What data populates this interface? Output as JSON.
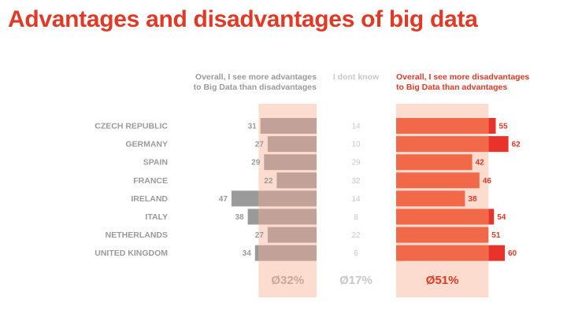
{
  "title": "Advantages and disadvantages of big data",
  "colors": {
    "title": "#e03a26",
    "adv_bar": "#c2a298",
    "adv_overflow": "#9a9a9a",
    "adv_band": "#fbdccf",
    "dis_bar": "#f2694a",
    "dis_overflow": "#e8322a",
    "dis_band": "#fbdccf",
    "label_gray": "#9a9a9a",
    "dontknow_gray": "#c8c8c8",
    "value_red": "#e03a26"
  },
  "chart_data": {
    "type": "bar",
    "title": "Advantages and disadvantages of big data",
    "categories": [
      "CZECH REPUBLIC",
      "GERMANY",
      "SPAIN",
      "FRANCE",
      "IRELAND",
      "ITALY",
      "NETHERLANDS",
      "UNITED KINGDOM"
    ],
    "series": [
      {
        "name": "Overall, I see more advantages to Big Data than disadvantages",
        "header_lines": [
          "Overall, I see more advantages",
          "to Big Data than disadvantages"
        ],
        "values": [
          31,
          27,
          29,
          22,
          47,
          38,
          27,
          34
        ],
        "average_label": "Ø32%"
      },
      {
        "name": "I dont know",
        "header_lines": [
          "I dont know"
        ],
        "values": [
          14,
          10,
          29,
          32,
          14,
          8,
          22,
          6
        ],
        "average_label": "Ø17%"
      },
      {
        "name": "Overall, I see more disadvantages to Big Data than advantages",
        "header_lines": [
          "Overall, I see more disadvantages",
          "to Big Data than advantages"
        ],
        "values": [
          55,
          62,
          42,
          46,
          38,
          54,
          51,
          60
        ],
        "average_label": "Ø51%"
      }
    ],
    "band_reference": {
      "advantages": 32,
      "disadvantages": 51
    }
  }
}
